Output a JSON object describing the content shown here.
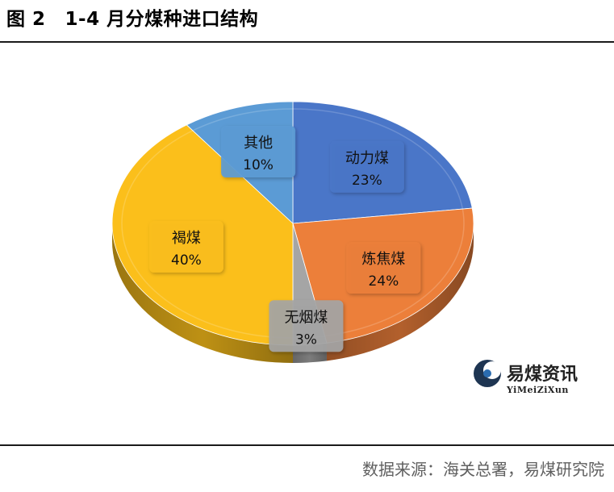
{
  "header": {
    "figure_no": "图 2",
    "title": "1-4 月分煤种进口结构"
  },
  "chart_data": {
    "type": "pie",
    "style": "3d-pie",
    "slices": [
      {
        "name": "动力煤",
        "value": 23,
        "label": "23%",
        "color": "#4a76c8"
      },
      {
        "name": "炼焦煤",
        "value": 24,
        "label": "24%",
        "color": "#ec7f3a"
      },
      {
        "name": "无烟煤",
        "value": 3,
        "label": "3%",
        "color": "#a5a5a5"
      },
      {
        "name": "褐煤",
        "value": 40,
        "label": "40%",
        "color": "#fbbf1b"
      },
      {
        "name": "其他",
        "value": 10,
        "label": "10%",
        "color": "#5b9bd5"
      }
    ]
  },
  "watermark": {
    "name": "易煤资讯",
    "name_en": "YiMeiZiXun"
  },
  "footer": {
    "source": "数据来源：海关总署，易煤研究院"
  }
}
